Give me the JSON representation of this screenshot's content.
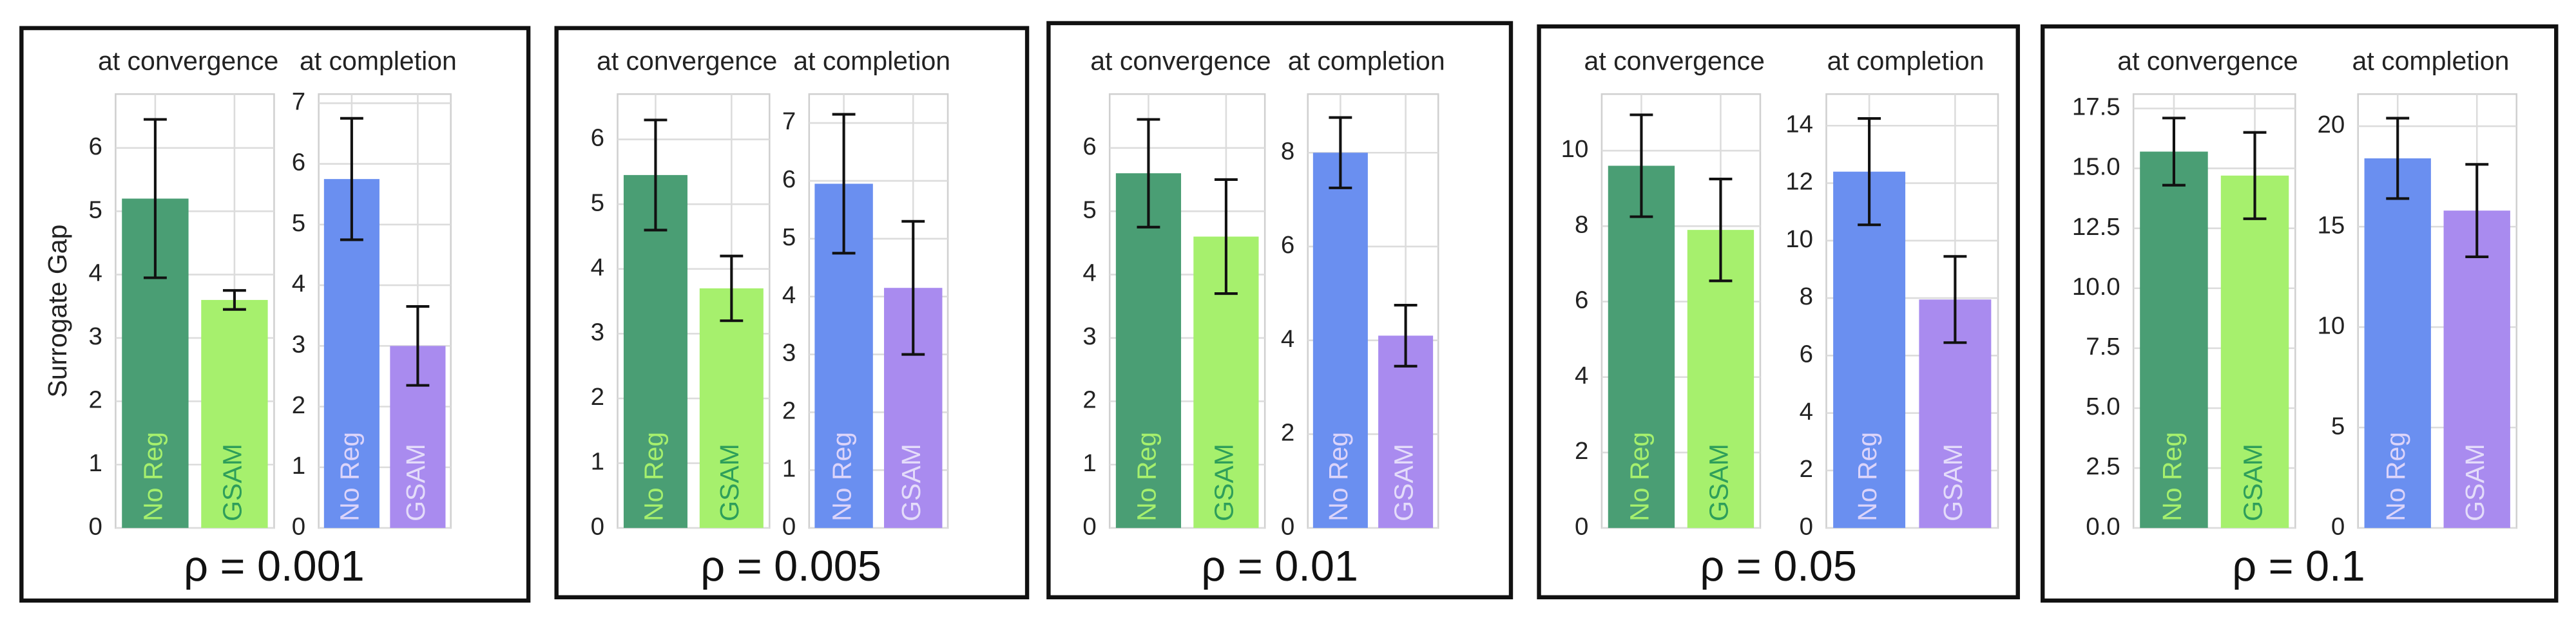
{
  "chart_data": [
    {
      "type": "bar",
      "title": "at convergence",
      "ylabel": "Surrogate Gap",
      "caption": "ρ = 0.001",
      "categories": [
        "No Reg",
        "GSAM"
      ],
      "values": [
        5.2,
        3.6
      ],
      "errors": [
        1.25,
        0.15
      ],
      "colors": [
        "#4a9e74",
        "#a6f06d"
      ],
      "label_colors": [
        "#a6f06d",
        "#2e9e5a"
      ],
      "ylim": [
        0,
        6.85
      ],
      "yticks": [
        0,
        1,
        2,
        3,
        4,
        5,
        6
      ],
      "grid": true
    },
    {
      "type": "bar",
      "title": "at completion",
      "categories": [
        "No Reg",
        "GSAM"
      ],
      "values": [
        5.75,
        3.0
      ],
      "errors": [
        1.0,
        0.65
      ],
      "colors": [
        "#6a8ff0",
        "#a98bef"
      ],
      "label_colors": [
        "#dcd4fa",
        "#e4dcfa"
      ],
      "ylim": [
        0,
        7.15
      ],
      "yticks": [
        0,
        1,
        2,
        3,
        4,
        5,
        6,
        7
      ],
      "grid": true
    },
    {
      "type": "bar",
      "title": "at convergence",
      "caption": "ρ = 0.005",
      "categories": [
        "No Reg",
        "GSAM"
      ],
      "values": [
        5.45,
        3.7
      ],
      "errors": [
        0.85,
        0.5
      ],
      "colors": [
        "#4a9e74",
        "#a6f06d"
      ],
      "label_colors": [
        "#a6f06d",
        "#2e9e5a"
      ],
      "ylim": [
        0,
        6.7
      ],
      "yticks": [
        0,
        1,
        2,
        3,
        4,
        5,
        6
      ],
      "grid": true
    },
    {
      "type": "bar",
      "title": "at completion",
      "categories": [
        "No Reg",
        "GSAM"
      ],
      "values": [
        5.95,
        4.15
      ],
      "errors": [
        1.2,
        1.15
      ],
      "colors": [
        "#6a8ff0",
        "#a98bef"
      ],
      "label_colors": [
        "#dcd4fa",
        "#e4dcfa"
      ],
      "ylim": [
        0,
        7.5
      ],
      "yticks": [
        0,
        1,
        2,
        3,
        4,
        5,
        6,
        7
      ],
      "grid": true
    },
    {
      "type": "bar",
      "title": "at convergence",
      "caption": "ρ = 0.01",
      "categories": [
        "No Reg",
        "GSAM"
      ],
      "values": [
        5.6,
        4.6
      ],
      "errors": [
        0.85,
        0.9
      ],
      "colors": [
        "#4a9e74",
        "#a6f06d"
      ],
      "label_colors": [
        "#a6f06d",
        "#2e9e5a"
      ],
      "ylim": [
        0,
        6.85
      ],
      "yticks": [
        0,
        1,
        2,
        3,
        4,
        5,
        6
      ],
      "grid": true
    },
    {
      "type": "bar",
      "title": "at completion",
      "categories": [
        "No Reg",
        "GSAM"
      ],
      "values": [
        8.0,
        4.1
      ],
      "errors": [
        0.75,
        0.65
      ],
      "colors": [
        "#6a8ff0",
        "#a98bef"
      ],
      "label_colors": [
        "#dcd4fa",
        "#e4dcfa"
      ],
      "ylim": [
        0,
        9.25
      ],
      "yticks": [
        0,
        2,
        4,
        6,
        8
      ],
      "grid": true
    },
    {
      "type": "bar",
      "title": "at convergence",
      "caption": "ρ = 0.05",
      "categories": [
        "No Reg",
        "GSAM"
      ],
      "values": [
        9.6,
        7.9
      ],
      "errors": [
        1.35,
        1.35
      ],
      "colors": [
        "#4a9e74",
        "#a6f06d"
      ],
      "label_colors": [
        "#a6f06d",
        "#2e9e5a"
      ],
      "ylim": [
        0,
        11.5
      ],
      "yticks": [
        0,
        2,
        4,
        6,
        8,
        10
      ],
      "grid": true
    },
    {
      "type": "bar",
      "title": "at completion",
      "categories": [
        "No Reg",
        "GSAM"
      ],
      "values": [
        12.4,
        7.95
      ],
      "errors": [
        1.85,
        1.5
      ],
      "colors": [
        "#6a8ff0",
        "#a98bef"
      ],
      "label_colors": [
        "#dcd4fa",
        "#e4dcfa"
      ],
      "ylim": [
        0,
        15.1
      ],
      "yticks": [
        0,
        2,
        4,
        6,
        8,
        10,
        12,
        14
      ],
      "grid": true
    },
    {
      "type": "bar",
      "title": "at convergence",
      "caption": "ρ = 0.1",
      "categories": [
        "No Reg",
        "GSAM"
      ],
      "values": [
        15.7,
        14.7
      ],
      "errors": [
        1.4,
        1.8
      ],
      "colors": [
        "#4a9e74",
        "#a6f06d"
      ],
      "label_colors": [
        "#a6f06d",
        "#2e9e5a"
      ],
      "ylim": [
        0,
        18.1
      ],
      "yticks": [
        {
          "value": 0,
          "label": "0.0"
        },
        2.5,
        {
          "value": 5,
          "label": "5.0"
        },
        7.5,
        {
          "value": 10,
          "label": "10.0"
        },
        12.5,
        {
          "value": 15,
          "label": "15.0"
        },
        17.5
      ],
      "grid": true
    },
    {
      "type": "bar",
      "title": "at completion",
      "categories": [
        "No Reg",
        "GSAM"
      ],
      "values": [
        18.4,
        15.8
      ],
      "errors": [
        2.0,
        2.3
      ],
      "colors": [
        "#6a8ff0",
        "#a98bef"
      ],
      "label_colors": [
        "#dcd4fa",
        "#e4dcfa"
      ],
      "ylim": [
        0,
        21.6
      ],
      "yticks": [
        0,
        5,
        10,
        15,
        20
      ],
      "grid": true
    }
  ]
}
